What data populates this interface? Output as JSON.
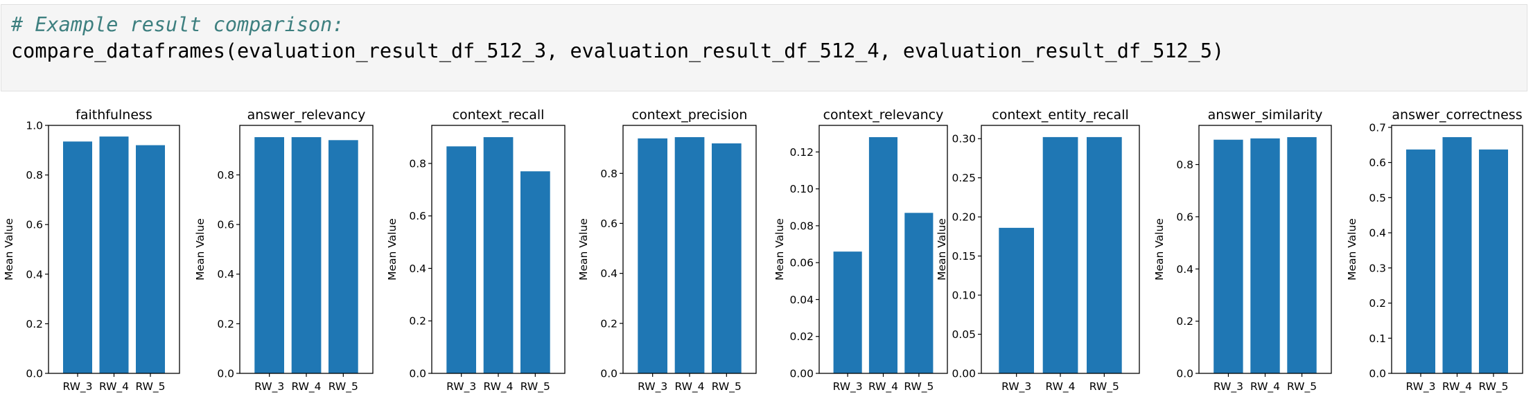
{
  "code_cell": {
    "comment": "# Example result comparison:",
    "code": "compare_dataframes(evaluation_result_df_512_3, evaluation_result_df_512_4, evaluation_result_df_512_5)"
  },
  "colors": {
    "bar": "#1f77b4"
  },
  "chart_data": [
    {
      "type": "bar",
      "title": "faithfulness",
      "ylabel": "Mean Value",
      "categories": [
        "RW_3",
        "RW_4",
        "RW_5"
      ],
      "values": [
        0.935,
        0.955,
        0.92
      ],
      "ylim": [
        0,
        1.0
      ],
      "yticks": [
        0.0,
        0.2,
        0.4,
        0.6,
        0.8,
        1.0
      ],
      "tick_labels": [
        "0.0",
        "0.2",
        "0.4",
        "0.6",
        "0.8",
        "1.0"
      ]
    },
    {
      "type": "bar",
      "title": "answer_relevancy",
      "ylabel": "Mean Value",
      "categories": [
        "RW_3",
        "RW_4",
        "RW_5"
      ],
      "values": [
        0.952,
        0.952,
        0.94
      ],
      "ylim": [
        0,
        0.9996
      ],
      "yticks": [
        0.0,
        0.2,
        0.4,
        0.6,
        0.8
      ],
      "tick_labels": [
        "0.0",
        "0.2",
        "0.4",
        "0.6",
        "0.8"
      ]
    },
    {
      "type": "bar",
      "title": "context_recall",
      "ylabel": "Mean Value",
      "categories": [
        "RW_3",
        "RW_4",
        "RW_5"
      ],
      "values": [
        0.865,
        0.9,
        0.77
      ],
      "ylim": [
        0,
        0.945
      ],
      "yticks": [
        0.0,
        0.2,
        0.4,
        0.6,
        0.8
      ],
      "tick_labels": [
        "0.0",
        "0.2",
        "0.4",
        "0.6",
        "0.8"
      ]
    },
    {
      "type": "bar",
      "title": "context_precision",
      "ylabel": "Mean Value",
      "categories": [
        "RW_3",
        "RW_4",
        "RW_5"
      ],
      "values": [
        0.94,
        0.945,
        0.92
      ],
      "ylim": [
        0,
        0.992
      ],
      "yticks": [
        0.0,
        0.2,
        0.4,
        0.6,
        0.8
      ],
      "tick_labels": [
        "0.0",
        "0.2",
        "0.4",
        "0.6",
        "0.8"
      ]
    },
    {
      "type": "bar",
      "title": "context_relevancy",
      "ylabel": "Mean Value",
      "categories": [
        "RW_3",
        "RW_4",
        "RW_5"
      ],
      "values": [
        0.066,
        0.128,
        0.087
      ],
      "ylim": [
        0,
        0.1344
      ],
      "yticks": [
        0.0,
        0.02,
        0.04,
        0.06,
        0.08,
        0.1,
        0.12
      ],
      "tick_labels": [
        "0.00",
        "0.02",
        "0.04",
        "0.06",
        "0.08",
        "0.10",
        "0.12"
      ]
    },
    {
      "type": "bar",
      "title": "context_entity_recall",
      "ylabel": "Mean Value",
      "categories": [
        "RW_3",
        "RW_4",
        "RW_5"
      ],
      "values": [
        0.186,
        0.302,
        0.302
      ],
      "ylim": [
        0,
        0.317
      ],
      "yticks": [
        0.0,
        0.05,
        0.1,
        0.15,
        0.2,
        0.25,
        0.3
      ],
      "tick_labels": [
        "0.00",
        "0.05",
        "0.10",
        "0.15",
        "0.20",
        "0.25",
        "0.30"
      ]
    },
    {
      "type": "bar",
      "title": "answer_similarity",
      "ylabel": "Mean Value",
      "categories": [
        "RW_3",
        "RW_4",
        "RW_5"
      ],
      "values": [
        0.895,
        0.9,
        0.905
      ],
      "ylim": [
        0,
        0.95
      ],
      "yticks": [
        0.0,
        0.2,
        0.4,
        0.6,
        0.8
      ],
      "tick_labels": [
        "0.0",
        "0.2",
        "0.4",
        "0.6",
        "0.8"
      ]
    },
    {
      "type": "bar",
      "title": "answer_correctness",
      "ylabel": "Mean Value",
      "categories": [
        "RW_3",
        "RW_4",
        "RW_5"
      ],
      "values": [
        0.637,
        0.672,
        0.637
      ],
      "ylim": [
        0,
        0.7056
      ],
      "yticks": [
        0.0,
        0.1,
        0.2,
        0.3,
        0.4,
        0.5,
        0.6,
        0.7
      ],
      "tick_labels": [
        "0.0",
        "0.1",
        "0.2",
        "0.3",
        "0.4",
        "0.5",
        "0.6",
        "0.7"
      ]
    }
  ]
}
